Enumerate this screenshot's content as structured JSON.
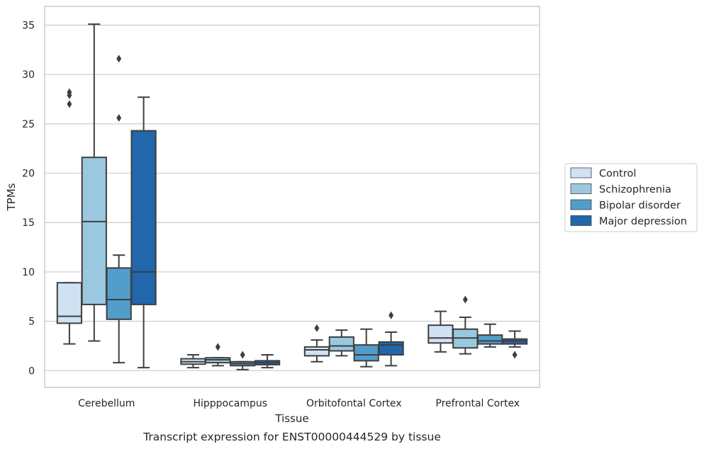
{
  "caption": "Transcript expression for ENST00000444529 by tissue",
  "chart_data": {
    "type": "box",
    "xlabel": "Tissue",
    "ylabel": "TPMs",
    "ylim": [
      -1.7,
      36.9
    ],
    "yticks": [
      0,
      5,
      10,
      15,
      20,
      25,
      30,
      35
    ],
    "grid": "horizontal",
    "legend_position": "right",
    "categories": [
      "Cerebellum",
      "Hipppocampus",
      "Orbitofontal Cortex",
      "Prefrontal Cortex"
    ],
    "series": [
      {
        "name": "Control",
        "color": "#d0e1f2",
        "boxes": [
          {
            "whisker_low": 2.7,
            "q1": 4.8,
            "median": 5.5,
            "q3": 8.9,
            "whisker_high": 8.9,
            "outliers": [
              27.0,
              27.9,
              28.2
            ]
          },
          {
            "whisker_low": 0.3,
            "q1": 0.65,
            "median": 0.9,
            "q3": 1.2,
            "whisker_high": 1.6,
            "outliers": []
          },
          {
            "whisker_low": 0.9,
            "q1": 1.5,
            "median": 2.1,
            "q3": 2.4,
            "whisker_high": 3.1,
            "outliers": [
              4.3
            ]
          },
          {
            "whisker_low": 1.9,
            "q1": 2.8,
            "median": 3.3,
            "q3": 4.6,
            "whisker_high": 6.0,
            "outliers": []
          }
        ]
      },
      {
        "name": "Schizophrenia",
        "color": "#9ac8e0",
        "boxes": [
          {
            "whisker_low": 3.0,
            "q1": 6.7,
            "median": 15.1,
            "q3": 21.6,
            "whisker_high": 35.1,
            "outliers": []
          },
          {
            "whisker_low": 0.5,
            "q1": 0.8,
            "median": 1.1,
            "q3": 1.3,
            "whisker_high": 1.3,
            "outliers": [
              2.4
            ]
          },
          {
            "whisker_low": 1.5,
            "q1": 2.0,
            "median": 2.5,
            "q3": 3.4,
            "whisker_high": 4.1,
            "outliers": []
          },
          {
            "whisker_low": 1.7,
            "q1": 2.3,
            "median": 3.3,
            "q3": 4.2,
            "whisker_high": 5.4,
            "outliers": [
              7.2
            ]
          }
        ]
      },
      {
        "name": "Bipolar disorder",
        "color": "#529dcc",
        "boxes": [
          {
            "whisker_low": 0.8,
            "q1": 5.2,
            "median": 7.2,
            "q3": 10.4,
            "whisker_high": 11.7,
            "outliers": [
              25.6,
              31.6
            ]
          },
          {
            "whisker_low": 0.1,
            "q1": 0.5,
            "median": 0.7,
            "q3": 0.9,
            "whisker_high": 0.9,
            "outliers": [
              1.6
            ]
          },
          {
            "whisker_low": 0.4,
            "q1": 1.0,
            "median": 1.6,
            "q3": 2.6,
            "whisker_high": 4.2,
            "outliers": []
          },
          {
            "whisker_low": 2.4,
            "q1": 2.7,
            "median": 3.0,
            "q3": 3.6,
            "whisker_high": 4.7,
            "outliers": []
          }
        ]
      },
      {
        "name": "Major depression",
        "color": "#2266ac",
        "boxes": [
          {
            "whisker_low": 0.3,
            "q1": 6.7,
            "median": 10.0,
            "q3": 24.3,
            "whisker_high": 27.7,
            "outliers": []
          },
          {
            "whisker_low": 0.3,
            "q1": 0.6,
            "median": 0.8,
            "q3": 1.0,
            "whisker_high": 1.6,
            "outliers": []
          },
          {
            "whisker_low": 0.5,
            "q1": 1.6,
            "median": 2.6,
            "q3": 2.9,
            "whisker_high": 3.9,
            "outliers": [
              5.6
            ]
          },
          {
            "whisker_low": 2.4,
            "q1": 2.7,
            "median": 3.0,
            "q3": 3.2,
            "whisker_high": 4.0,
            "outliers": [
              1.6
            ]
          }
        ]
      }
    ]
  }
}
